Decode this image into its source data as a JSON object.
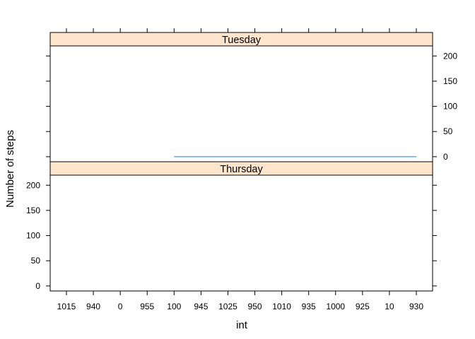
{
  "chart_data": {
    "type": "line",
    "xlabel": "int",
    "ylabel": "Number of steps",
    "categories": [
      "1015",
      "940",
      "0",
      "955",
      "100",
      "945",
      "1025",
      "950",
      "1010",
      "935",
      "1000",
      "925",
      "10",
      "930"
    ],
    "yticks": [
      0,
      50,
      100,
      150,
      200
    ],
    "ylim": [
      -10,
      220
    ],
    "panels": [
      {
        "strip": "Tuesday",
        "series": [
          {
            "values": [
              null,
              null,
              null,
              null,
              0,
              0,
              0,
              0,
              0,
              0,
              0,
              0,
              0,
              0
            ],
            "color": "#0080ff"
          }
        ]
      },
      {
        "strip": "Thursday",
        "series": [
          {
            "values": [
              null,
              null,
              null,
              null,
              null,
              null,
              null,
              null,
              null,
              null,
              null,
              null,
              null,
              null
            ],
            "color": "#0080ff"
          }
        ]
      }
    ],
    "strip_color": "#ffe5cc",
    "grid": false,
    "legend": "none"
  }
}
